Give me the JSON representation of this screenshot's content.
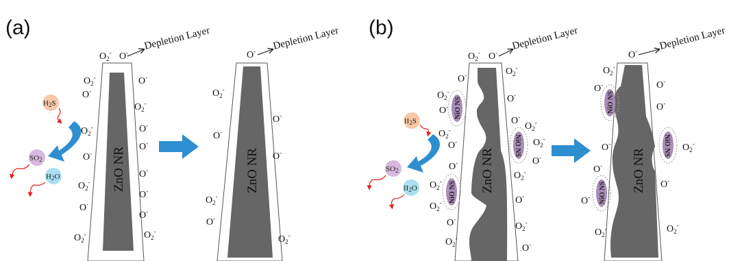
{
  "panels": {
    "a": {
      "label": "(a)"
    },
    "b": {
      "label": "(b)"
    }
  },
  "labels": {
    "depletion_layer": "Depletion Layer",
    "zno_nr": "ZnO NR",
    "nio_ns": "NiO NS",
    "o2_minus": "O",
    "o2_sub": "2",
    "o_minus": "O",
    "minus_sign": "-"
  },
  "molecules": {
    "h2s": {
      "text": "H",
      "sub": "2",
      "tail": "S",
      "color": "#f7c9a8"
    },
    "so2": {
      "text": "SO",
      "sub": "2",
      "color": "#d7b8de"
    },
    "h2o": {
      "text": "H",
      "sub": "2",
      "tail": "O",
      "color": "#a9dff0"
    },
    "h2s_b": {
      "text": "II",
      "sub": "2",
      "tail": "S",
      "color": "#f7c9a8"
    },
    "h2o_b": {
      "text": "II",
      "sub": "2",
      "tail": "O",
      "color": "#a9dff0"
    }
  },
  "colors": {
    "core": "#666666",
    "arrow_blue": "#2e8fd0",
    "nio_fill": "#a98cb8",
    "squiggle_red": "#e8201a"
  }
}
